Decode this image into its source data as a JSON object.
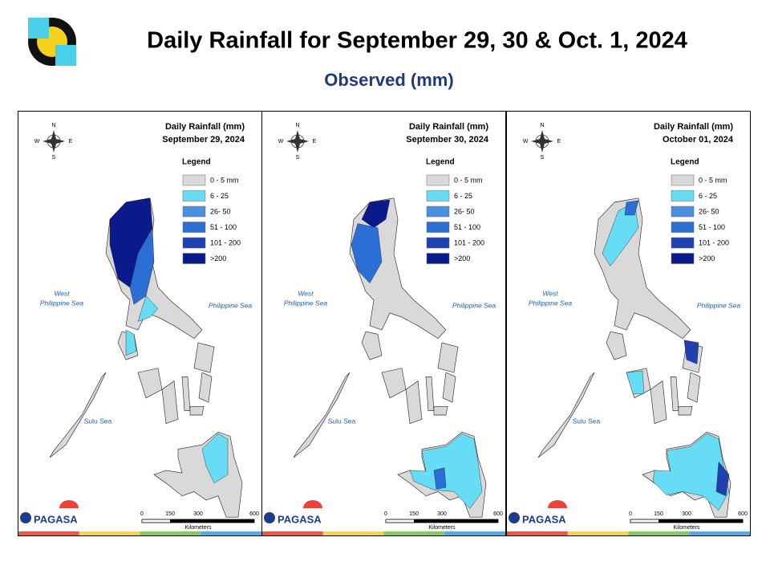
{
  "header": {
    "title": "Daily Rainfall for September 29, 30 & Oct. 1, 2024",
    "subtitle": "Observed (mm)"
  },
  "legend_colors": [
    "#d9d9d9",
    "#66ddf5",
    "#4a90e0",
    "#2b6fd6",
    "#2040b0",
    "#0a1a8a"
  ],
  "panels": [
    {
      "heading": "Daily Rainfall (mm)",
      "date": "September 29, 2024",
      "legend_title": "Legend",
      "legend": [
        "0 - 5 mm",
        "6 - 25",
        "26- 50",
        "51 - 100",
        "101 - 200",
        ">200"
      ],
      "sea_west": [
        "West",
        "Philippine Sea"
      ],
      "sea_east": "Philippine Sea",
      "sea_south": "Sulu Sea",
      "scale": [
        "0",
        "150",
        "300",
        "600"
      ],
      "scale_unit": "Kilometers",
      "compass": [
        "N",
        "E",
        "S",
        "W"
      ],
      "logo": "PAGASA"
    },
    {
      "heading": "Daily Rainfall (mm)",
      "date": "September 30, 2024",
      "legend_title": "Legend",
      "legend": [
        "0 - 5 mm",
        "6 - 25",
        "26- 50",
        "51 - 100",
        "101 - 200",
        ">200"
      ],
      "sea_west": [
        "West",
        "Philippine Sea"
      ],
      "sea_east": "Philippine Sea",
      "sea_south": "Sulu Sea",
      "scale": [
        "0",
        "150",
        "300",
        "600"
      ],
      "scale_unit": "Kilometers",
      "compass": [
        "N",
        "E",
        "S",
        "W"
      ],
      "logo": "PAGASA"
    },
    {
      "heading": "Daily Rainfall (mm)",
      "date": "October 01, 2024",
      "legend_title": "Legend",
      "legend": [
        "0 - 5 mm",
        "6 - 25",
        "26- 50",
        "51 - 100",
        "101 - 200",
        ">200"
      ],
      "sea_west": [
        "West",
        "Philippine Sea"
      ],
      "sea_east": "Philippine Sea",
      "sea_south": "Sulu Sea",
      "scale": [
        "0",
        "150",
        "300",
        "600"
      ],
      "scale_unit": "Kilometers",
      "compass": [
        "N",
        "E",
        "S",
        "W"
      ],
      "logo": "PAGASA"
    }
  ]
}
